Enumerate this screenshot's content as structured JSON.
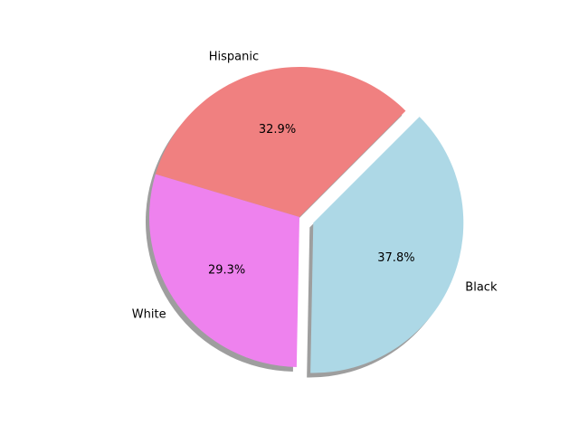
{
  "chart_data": {
    "type": "pie",
    "categories": [
      "Hispanic",
      "White",
      "Black"
    ],
    "values": [
      32.9,
      29.3,
      37.8
    ],
    "value_labels": [
      "32.9%",
      "29.3%",
      "37.8%"
    ],
    "colors": [
      "#f08080",
      "#ee82ee",
      "#add8e6"
    ],
    "exploded": [
      false,
      false,
      true
    ],
    "shadow": true
  }
}
